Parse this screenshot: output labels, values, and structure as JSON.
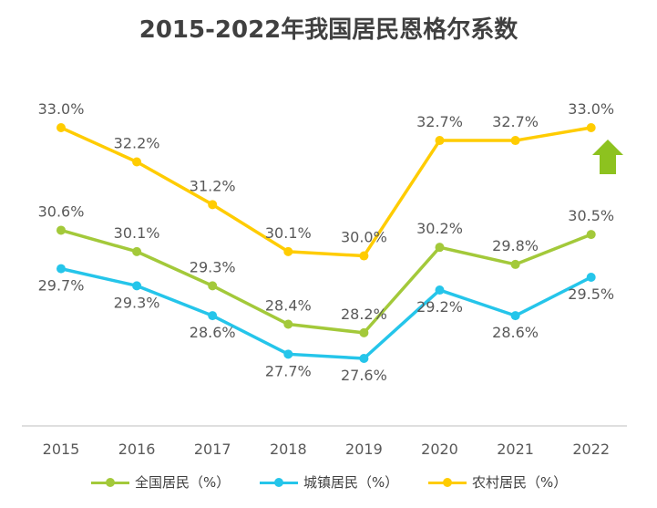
{
  "title": "2015-2022年我国居民恩格尔系数",
  "chart_data": {
    "type": "line",
    "title": "2015-2022年我国居民恩格尔系数",
    "xlabel": "",
    "ylabel": "",
    "categories": [
      "2015",
      "2016",
      "2017",
      "2018",
      "2019",
      "2020",
      "2021",
      "2022"
    ],
    "ylim": [
      24.5,
      34.0
    ],
    "grid": false,
    "legend_position": "bottom",
    "series": [
      {
        "name": "全国居民（%）",
        "color": "#a3c93a",
        "values": [
          30.6,
          30.1,
          29.3,
          28.4,
          28.2,
          30.2,
          29.8,
          30.5
        ],
        "labels": [
          "30.6%",
          "30.1%",
          "29.3%",
          "28.4%",
          "28.2%",
          "30.2%",
          "29.8%",
          "30.5%"
        ]
      },
      {
        "name": "城镇居民（%）",
        "color": "#25c5ea",
        "values": [
          29.7,
          29.3,
          28.6,
          27.7,
          27.6,
          29.2,
          28.6,
          29.5
        ],
        "labels": [
          "29.7%",
          "29.3%",
          "28.6%",
          "27.7%",
          "27.6%",
          "29.2%",
          "28.6%",
          "29.5%"
        ]
      },
      {
        "name": "农村居民（%）",
        "color": "#ffcc00",
        "values": [
          33.0,
          32.2,
          31.2,
          30.1,
          30.0,
          32.7,
          32.7,
          33.0
        ],
        "labels": [
          "33.0%",
          "32.2%",
          "31.2%",
          "30.1%",
          "30.0%",
          "32.7%",
          "32.7%",
          "33.0%"
        ]
      }
    ],
    "annotations": [
      {
        "type": "up-arrow",
        "color": "#8dc21f"
      }
    ]
  },
  "legend": {
    "items": [
      {
        "label": "全国居民（%）",
        "color": "#a3c93a"
      },
      {
        "label": "城镇居民（%）",
        "color": "#25c5ea"
      },
      {
        "label": "农村居民（%）",
        "color": "#ffcc00"
      }
    ]
  }
}
